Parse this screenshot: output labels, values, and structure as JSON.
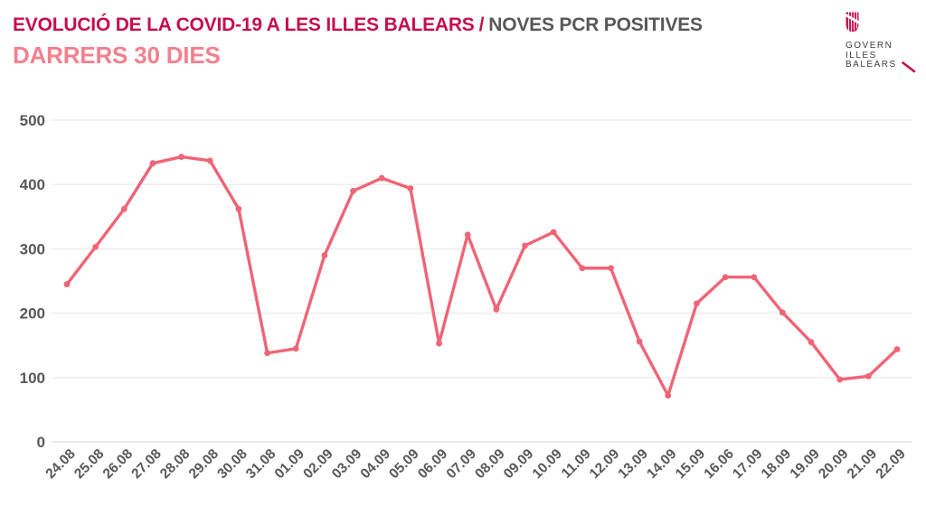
{
  "header": {
    "title": {
      "main": "EVOLUCIÓ DE LA COVID-19 A LES ILLES BALEARS",
      "separator": "/",
      "secondary": "NOVES PCR POSITIVES"
    },
    "subtitle": "DARRERS 30 DIES"
  },
  "logo": {
    "lines": [
      "GOVERN",
      "ILLES",
      "BALEARS"
    ],
    "shield_icon": "balearic-shield"
  },
  "colors": {
    "title_main": "#c50e4d",
    "title_secondary": "#58585a",
    "subtitle": "#f4808f",
    "line": "#f06476",
    "marker": "#f06476",
    "grid": "#ebebeb",
    "grid_zero": "#e2e2e2",
    "axis_text": "#58585a",
    "logo_text": "#3e3e40",
    "logo_accent": "#c50e4d"
  },
  "chart_data": {
    "type": "line",
    "title": "EVOLUCIÓ DE LA COVID-19 A LES ILLES BALEARS / NOVES PCR POSITIVES — DARRERS 30 DIES",
    "categories": [
      "24.08",
      "25.08",
      "26.08",
      "27.08",
      "28.08",
      "29.08",
      "30.08",
      "31.08",
      "01.09",
      "02.09",
      "03.09",
      "04.09",
      "05.09",
      "06.09",
      "07.09",
      "08.09",
      "09.09",
      "10.09",
      "11.09",
      "12.09",
      "13.09",
      "14.09",
      "15.09",
      "16.06",
      "17.09",
      "18.09",
      "19.09",
      "20.09",
      "21.09",
      "22.09"
    ],
    "values": [
      245,
      303,
      362,
      433,
      443,
      437,
      362,
      138,
      145,
      290,
      390,
      410,
      394,
      153,
      322,
      206,
      305,
      326,
      270,
      270,
      156,
      72,
      215,
      256,
      256,
      201,
      155,
      97,
      102,
      144
    ],
    "xlabel": "",
    "ylabel": "",
    "ylim": [
      0,
      500
    ],
    "yticks": [
      0,
      100,
      200,
      300,
      400,
      500
    ],
    "grid": true,
    "legend_position": "none",
    "marker": "circle",
    "x_tick_rotation": -45
  }
}
